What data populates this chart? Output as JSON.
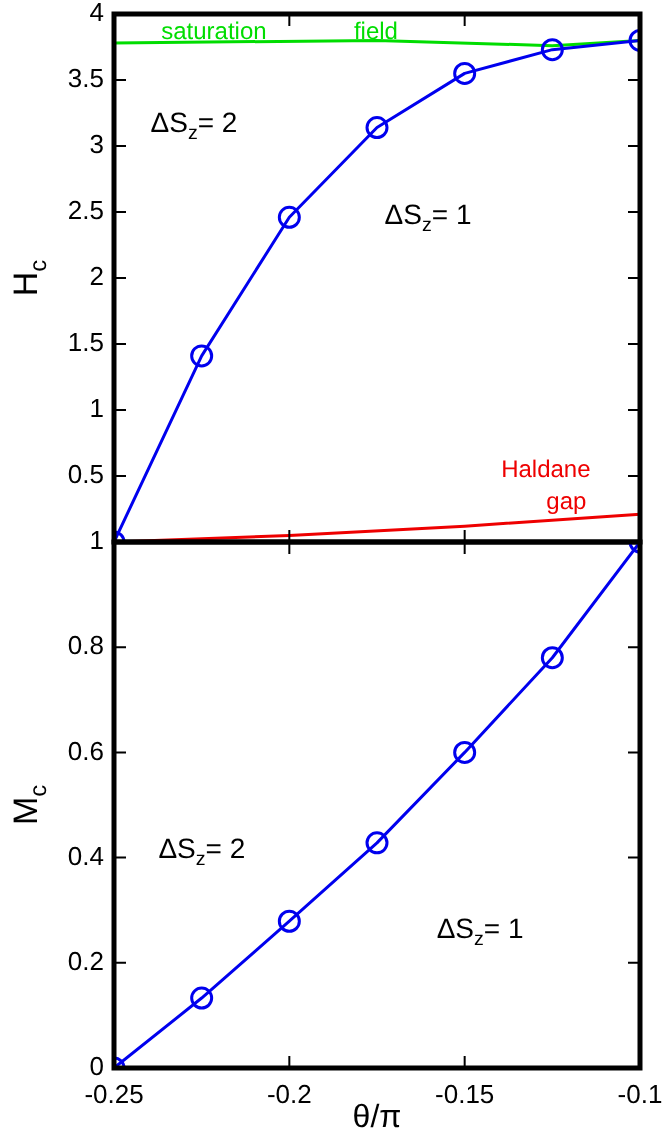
{
  "chart_data": [
    {
      "type": "line",
      "ylabel": "H$_{c}$",
      "xlim": [
        -0.25,
        -0.1
      ],
      "xticks": [
        -0.25,
        -0.2,
        -0.15,
        -0.1
      ],
      "ylim": [
        0,
        4
      ],
      "yticks": [
        0.5,
        1,
        1.5,
        2,
        2.5,
        3,
        3.5,
        4
      ],
      "tick_labels": "y",
      "grid": false,
      "legend": false,
      "series": [
        {
          "color": "#0000ee",
          "marker": "circle",
          "x": [
            -0.25,
            -0.225,
            -0.2,
            -0.175,
            -0.15,
            -0.125,
            -0.1
          ],
          "values": [
            0,
            1.41,
            2.46,
            3.14,
            3.55,
            3.73,
            3.8
          ]
        },
        {
          "color": "#00dd00",
          "marker": "none",
          "x": [
            -0.25,
            -0.175,
            -0.125,
            -0.1
          ],
          "values": [
            3.78,
            3.8,
            3.76,
            3.8
          ]
        },
        {
          "color": "#ee0000",
          "marker": "none",
          "x": [
            -0.25,
            -0.2,
            -0.15,
            -0.1
          ],
          "values": [
            0,
            0.05,
            0.12,
            0.21
          ]
        }
      ],
      "annotations": [
        "saturation",
        "field",
        "ΔS$_{z}$= 2",
        "ΔS$_{z}$= 1",
        "Haldane",
        "gap"
      ]
    },
    {
      "type": "line",
      "xlabel": "θ/π",
      "ylabel": "M$_{c}$",
      "xlim": [
        -0.25,
        -0.1
      ],
      "xticks": [
        -0.25,
        -0.2,
        -0.15,
        -0.1
      ],
      "ylim": [
        0,
        1
      ],
      "yticks": [
        0,
        0.2,
        0.4,
        0.6,
        0.8,
        1
      ],
      "grid": false,
      "legend": false,
      "series": [
        {
          "color": "#0000ee",
          "marker": "circle",
          "x": [
            -0.25,
            -0.225,
            -0.2,
            -0.175,
            -0.15,
            -0.125,
            -0.1
          ],
          "values": [
            0,
            0.133,
            0.279,
            0.428,
            0.6,
            0.78,
            1
          ]
        }
      ],
      "annotations": [
        "ΔS$_{z}$= 2",
        "ΔS$_{z}$= 1"
      ]
    }
  ]
}
